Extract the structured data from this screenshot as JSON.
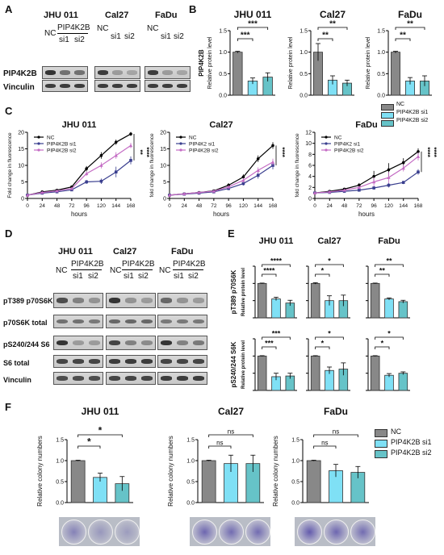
{
  "panels": {
    "A": "A",
    "B": "B",
    "C": "C",
    "D": "D",
    "E": "E",
    "F": "F"
  },
  "cell_lines": [
    "JHU 011",
    "Cal27",
    "FaDu"
  ],
  "colors": {
    "nc": "#888888",
    "si1": "#7fe0f5",
    "si2": "#66c3c8",
    "nc_line": "#000000",
    "si1_line": "#3a3f8f",
    "si2_line": "#c46cc4"
  },
  "blot_A": {
    "row_labels": [
      "PIP4K2B",
      "Vinculin"
    ],
    "headers": [
      {
        "nc": "NC",
        "gene": "PIP4K2B",
        "si1": "si1",
        "si2": "si2"
      },
      {
        "nc": "NC",
        "si1": "si1",
        "si2": "si2"
      },
      {
        "nc": "NC",
        "si1": "si1",
        "si2": "si2"
      }
    ]
  },
  "blot_D": {
    "row_labels": [
      "pT389 p70S6K",
      "p70S6K total",
      "pS240/244 S6",
      "S6 total",
      "Vinculin"
    ],
    "headers": [
      {
        "nc": "NC",
        "gene": "PIP4K2B",
        "si1": "si1",
        "si2": "si2"
      },
      {
        "nc": "NC",
        "gene": "PIP4K2B",
        "si1": "si1",
        "si2": "si2"
      },
      {
        "nc": "NC",
        "gene": "PIP4K2B",
        "si1": "si1",
        "si2": "si2"
      }
    ]
  },
  "legend_B": [
    "NC",
    "PIP4K2B si1",
    "PIP4K2B si2"
  ],
  "legend_F": [
    "NC",
    "PIP4K2B si1",
    "PIP4K2B si2"
  ],
  "chart_data": [
    {
      "id": "B-JHU011",
      "type": "bar",
      "title": "JHU 011",
      "ylabel": "Relative protein level",
      "ylabel2": "PIP4K2B",
      "categories": [
        "NC",
        "PIP4K2B si1",
        "PIP4K2B si2"
      ],
      "values": [
        1.0,
        0.33,
        0.42
      ],
      "errors": [
        0.02,
        0.07,
        0.1
      ],
      "ylim": [
        0,
        1.5
      ],
      "yticks": [
        "0.0",
        "0.5",
        "1.0",
        "1.5"
      ],
      "sig": [
        [
          "***",
          0,
          1
        ],
        [
          "***",
          0,
          2
        ]
      ]
    },
    {
      "id": "B-Cal27",
      "type": "bar",
      "title": "Cal27",
      "ylabel": "Relative protein level",
      "categories": [
        "NC",
        "PIP4K2B si1",
        "PIP4K2B si2"
      ],
      "values": [
        1.0,
        0.35,
        0.28
      ],
      "errors": [
        0.2,
        0.1,
        0.07
      ],
      "ylim": [
        0,
        1.5
      ],
      "yticks": [
        "0.0",
        "0.5",
        "1.0",
        "1.5"
      ],
      "sig": [
        [
          "**",
          0,
          1
        ],
        [
          "**",
          0,
          2
        ]
      ]
    },
    {
      "id": "B-FaDu",
      "type": "bar",
      "title": "FaDu",
      "ylabel": "Relative protein level",
      "categories": [
        "NC",
        "PIP4K2B si1",
        "PIP4K2B si2"
      ],
      "values": [
        1.0,
        0.33,
        0.33
      ],
      "errors": [
        0.02,
        0.08,
        0.12
      ],
      "ylim": [
        0,
        1.5
      ],
      "yticks": [
        "0.0",
        "0.5",
        "1.0",
        "1.5"
      ],
      "sig": [
        [
          "**",
          0,
          1
        ],
        [
          "**",
          0,
          2
        ]
      ]
    },
    {
      "id": "C-JHU011",
      "type": "line",
      "title": "JHU 011",
      "xlabel": "hours",
      "ylabel": "Fold change in fluorescence",
      "x": [
        0,
        24,
        48,
        72,
        96,
        120,
        144,
        168
      ],
      "xticks": [
        "0",
        "24",
        "48",
        "72",
        "96",
        "120",
        "144",
        "168"
      ],
      "ylim": [
        0,
        20
      ],
      "yticks": [
        "0",
        "5",
        "10",
        "15",
        "20"
      ],
      "legend": [
        "NC",
        "PIP4K2B si1",
        "PIP4K2B si2"
      ],
      "series": [
        {
          "name": "NC",
          "values": [
            1,
            2,
            2.5,
            3.5,
            9,
            13,
            17,
            19.5
          ],
          "errors": [
            0,
            0,
            0,
            0.4,
            0.8,
            1,
            0.8,
            0.6
          ]
        },
        {
          "name": "PIP4K2B si1",
          "values": [
            1,
            1.6,
            2,
            2.6,
            5,
            5.2,
            8,
            11.5
          ],
          "errors": [
            0,
            0,
            0,
            0.3,
            0.6,
            0.8,
            1.6,
            1.2
          ]
        },
        {
          "name": "PIP4K2B si2",
          "values": [
            1,
            1.8,
            2.3,
            3,
            7.5,
            10,
            13,
            16
          ],
          "errors": [
            0,
            0,
            0,
            0.3,
            0.7,
            0.9,
            1,
            0.8
          ]
        }
      ],
      "sig": [
        "**",
        "****"
      ]
    },
    {
      "id": "C-Cal27",
      "type": "line",
      "title": "Cal27",
      "xlabel": "hours",
      "ylabel": "fold change in fluorescence",
      "x": [
        0,
        24,
        48,
        72,
        96,
        120,
        144,
        168
      ],
      "xticks": [
        "0",
        "24",
        "48",
        "72",
        "96",
        "120",
        "144",
        "168"
      ],
      "ylim": [
        0,
        20
      ],
      "yticks": [
        "0",
        "5",
        "10",
        "15",
        "20"
      ],
      "legend": [
        "NC",
        "PIP4K2 si1",
        "PIP4K2B si2"
      ],
      "series": [
        {
          "name": "NC",
          "values": [
            1,
            1.4,
            1.8,
            2.3,
            4,
            6.5,
            12,
            16
          ],
          "errors": [
            0,
            0,
            0,
            0.3,
            0.6,
            0.8,
            1,
            1
          ]
        },
        {
          "name": "PIP4K2 si1",
          "values": [
            1,
            1.3,
            1.6,
            2,
            3,
            4.5,
            7,
            10
          ],
          "errors": [
            0,
            0,
            0,
            0.2,
            0.5,
            0.6,
            1,
            1.2
          ]
        },
        {
          "name": "PIP4K2B si2",
          "values": [
            1,
            1.4,
            1.8,
            2.2,
            3.5,
            5.5,
            8.5,
            11
          ],
          "errors": [
            0,
            0,
            0,
            0.2,
            0.5,
            0.7,
            0.9,
            1
          ]
        }
      ],
      "sig": [
        "****"
      ]
    },
    {
      "id": "C-FaDu",
      "type": "line",
      "title": "FaDu",
      "xlabel": "hours",
      "ylabel": "fold change in fluorescence",
      "x": [
        0,
        24,
        48,
        72,
        96,
        120,
        144,
        168
      ],
      "xticks": [
        "0",
        "24",
        "48",
        "72",
        "96",
        "120",
        "144",
        "168"
      ],
      "ylim": [
        0,
        12
      ],
      "yticks": [
        "0",
        "2",
        "4",
        "6",
        "8",
        "10",
        "12"
      ],
      "legend": [
        "NC",
        "PIP4K2 si1",
        "PIP4K2B si2"
      ],
      "series": [
        {
          "name": "NC",
          "values": [
            1,
            1.3,
            1.7,
            2.4,
            4,
            5.2,
            6.5,
            8.5
          ],
          "errors": [
            0,
            0,
            0,
            0.4,
            1,
            1.2,
            0.8,
            0.6
          ]
        },
        {
          "name": "PIP4K2 si1",
          "values": [
            1,
            1.1,
            1.3,
            1.5,
            1.9,
            2.4,
            2.9,
            4.8
          ],
          "errors": [
            0,
            0,
            0,
            0.2,
            0.3,
            0.4,
            0.3,
            0.5
          ]
        },
        {
          "name": "PIP4K2B si2",
          "values": [
            1,
            1.2,
            1.5,
            2,
            3,
            3.8,
            5.5,
            7.6
          ],
          "errors": [
            0,
            0,
            0,
            0.3,
            0.8,
            1,
            0.6,
            0.7
          ]
        }
      ],
      "sig": [
        "****",
        "****"
      ]
    },
    {
      "id": "E-pT389-JHU011",
      "type": "bar",
      "title": "JHU 011",
      "ylabel": "Relative protein level",
      "ylabel2": "pT389 p70S6K",
      "categories": [
        "NC",
        "PIP4K2B si1",
        "PIP4K2B si2"
      ],
      "values": [
        1.0,
        0.55,
        0.43
      ],
      "errors": [
        0.01,
        0.05,
        0.08
      ],
      "ylim": [
        0,
        1.5
      ],
      "yticks": [],
      "sig": [
        [
          "****",
          0,
          1
        ],
        [
          "****",
          0,
          2
        ]
      ]
    },
    {
      "id": "E-pT389-Cal27",
      "type": "bar",
      "title": "Cal27",
      "categories": [
        "NC",
        "PIP4K2B si1",
        "PIP4K2B si2"
      ],
      "values": [
        1.0,
        0.5,
        0.5
      ],
      "errors": [
        0.02,
        0.14,
        0.16
      ],
      "ylim": [
        0,
        1.5
      ],
      "yticks": [],
      "sig": [
        [
          "*",
          0,
          1
        ],
        [
          "*",
          0,
          2
        ]
      ]
    },
    {
      "id": "E-pT389-FaDu",
      "type": "bar",
      "title": "FaDu",
      "categories": [
        "NC",
        "PIP4K2B si1",
        "PIP4K2B si2"
      ],
      "values": [
        1.0,
        0.55,
        0.47
      ],
      "errors": [
        0.01,
        0.03,
        0.04
      ],
      "ylim": [
        0,
        1.5
      ],
      "yticks": [],
      "sig": [
        [
          "**",
          0,
          1
        ],
        [
          "**",
          0,
          2
        ]
      ]
    },
    {
      "id": "E-pS240-JHU011",
      "type": "bar",
      "ylabel": "Relative protein level",
      "ylabel2": "pS240/244 S6K",
      "categories": [
        "NC",
        "PIP4K2B si1",
        "PIP4K2B si2"
      ],
      "values": [
        1.0,
        0.4,
        0.42
      ],
      "errors": [
        0.01,
        0.1,
        0.08
      ],
      "ylim": [
        0,
        1.5
      ],
      "yticks": [],
      "sig": [
        [
          "***",
          0,
          1
        ],
        [
          "***",
          0,
          2
        ]
      ]
    },
    {
      "id": "E-pS240-Cal27",
      "type": "bar",
      "categories": [
        "NC",
        "PIP4K2B si1",
        "PIP4K2B si2"
      ],
      "values": [
        1.0,
        0.58,
        0.62
      ],
      "errors": [
        0.01,
        0.1,
        0.18
      ],
      "ylim": [
        0,
        1.5
      ],
      "yticks": [],
      "sig": [
        [
          "*",
          0,
          1
        ],
        [
          "*",
          0,
          2
        ]
      ]
    },
    {
      "id": "E-pS240-FaDu",
      "type": "bar",
      "categories": [
        "NC",
        "PIP4K2B si1",
        "PIP4K2B si2"
      ],
      "values": [
        1.0,
        0.44,
        0.5
      ],
      "errors": [
        0.01,
        0.05,
        0.04
      ],
      "ylim": [
        0,
        1.5
      ],
      "yticks": [],
      "sig": [
        [
          "*",
          0,
          1
        ],
        [
          "*",
          0,
          2
        ]
      ]
    },
    {
      "id": "F-JHU011",
      "type": "bar",
      "title": "JHU 011",
      "ylabel": "Relative colony numbers",
      "categories": [
        "NC",
        "PIP4K2B si1",
        "PIP4K2B si2"
      ],
      "values": [
        1.0,
        0.6,
        0.45
      ],
      "errors": [
        0.01,
        0.1,
        0.17
      ],
      "ylim": [
        0,
        1.5
      ],
      "yticks": [
        "0.0",
        "0.5",
        "1.0",
        "1.5"
      ],
      "sig": [
        [
          "*",
          0,
          1
        ],
        [
          "*",
          0,
          2
        ]
      ]
    },
    {
      "id": "F-Cal27",
      "type": "bar",
      "title": "Cal27",
      "ylabel": "Relative colony numbers",
      "categories": [
        "NC",
        "PIP4K2B si1",
        "PIP4K2B si2"
      ],
      "values": [
        1.0,
        0.93,
        0.93
      ],
      "errors": [
        0.01,
        0.2,
        0.2
      ],
      "ylim": [
        0,
        1.5
      ],
      "yticks": [
        "0.0",
        "0.5",
        "1.0",
        "1.5"
      ],
      "sig": [
        [
          "ns",
          0,
          1
        ],
        [
          "ns",
          0,
          2
        ]
      ]
    },
    {
      "id": "F-FaDu",
      "type": "bar",
      "title": "FaDu",
      "ylabel": "Relative colony numbers",
      "categories": [
        "NC",
        "PIP4K2B si1",
        "PIP4K2B si2"
      ],
      "values": [
        1.0,
        0.76,
        0.72
      ],
      "errors": [
        0.01,
        0.15,
        0.14
      ],
      "ylim": [
        0,
        1.5
      ],
      "yticks": [
        "0.0",
        "0.5",
        "1.0",
        "1.5"
      ],
      "sig": [
        [
          "ns",
          0,
          1
        ],
        [
          "ns",
          0,
          2
        ]
      ]
    }
  ]
}
